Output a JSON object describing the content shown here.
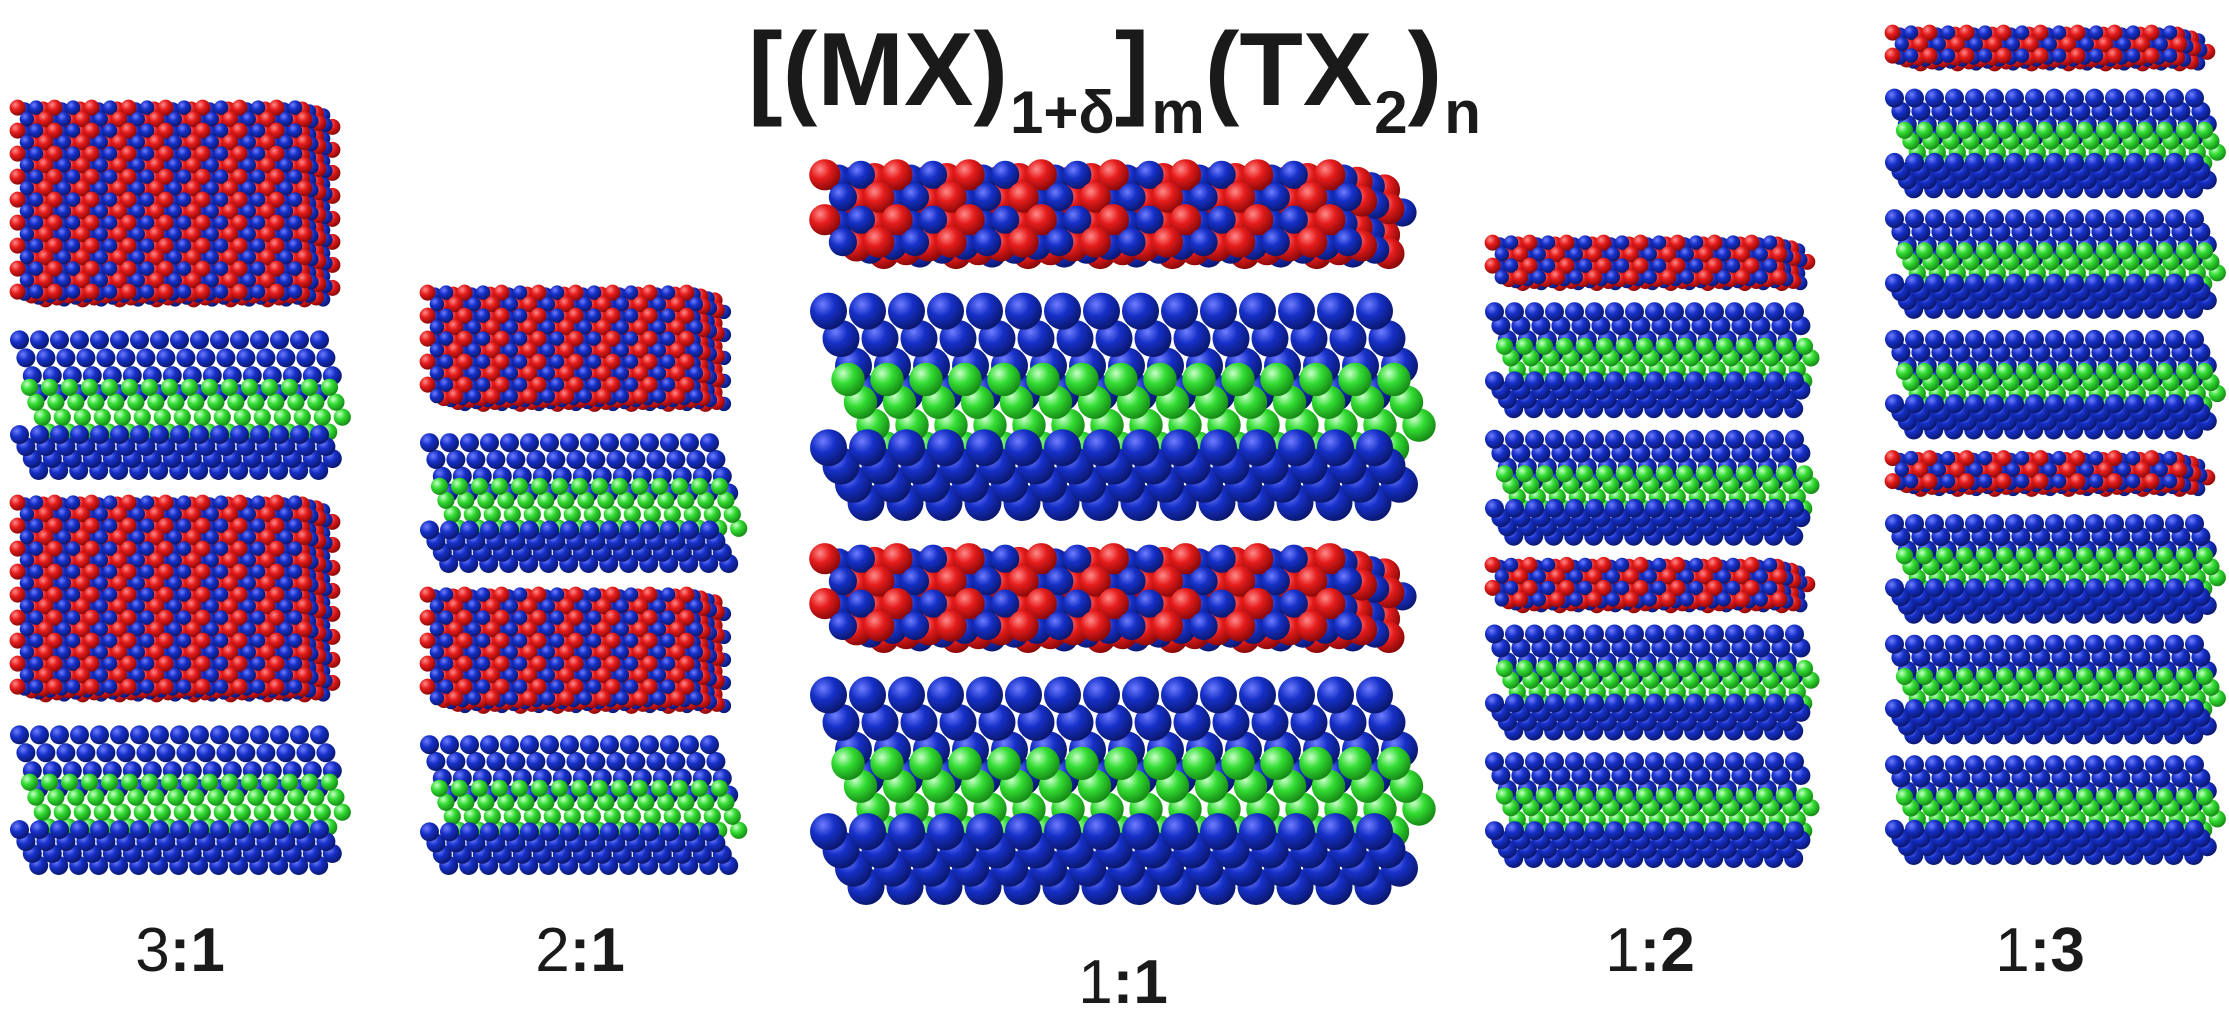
{
  "figure": {
    "formula": {
      "base_open": "[(MX)",
      "sub_1": "1+δ",
      "bracket_close": "]",
      "sub_m": "m",
      "base_tx": "(TX",
      "sub_2": "2",
      "paren_close": ")",
      "sub_n": "n"
    },
    "colors": {
      "M_atom": "#e61c1c",
      "X_atom": "#1630c8",
      "T_atom": "#33dd33",
      "text": "#1a1a1a"
    },
    "structures": [
      {
        "ratio_left": "3",
        "sep": ":",
        "ratio_right": "1",
        "m": 3,
        "n": 1
      },
      {
        "ratio_left": "2",
        "sep": ":",
        "ratio_right": "1",
        "m": 2,
        "n": 1
      },
      {
        "ratio_left": "1",
        "sep": ":",
        "ratio_right": "1",
        "m": 1,
        "n": 1
      },
      {
        "ratio_left": "1",
        "sep": ":",
        "ratio_right": "2",
        "m": 1,
        "n": 2
      },
      {
        "ratio_left": "1",
        "sep": ":",
        "ratio_right": "3",
        "m": 1,
        "n": 3
      }
    ]
  }
}
